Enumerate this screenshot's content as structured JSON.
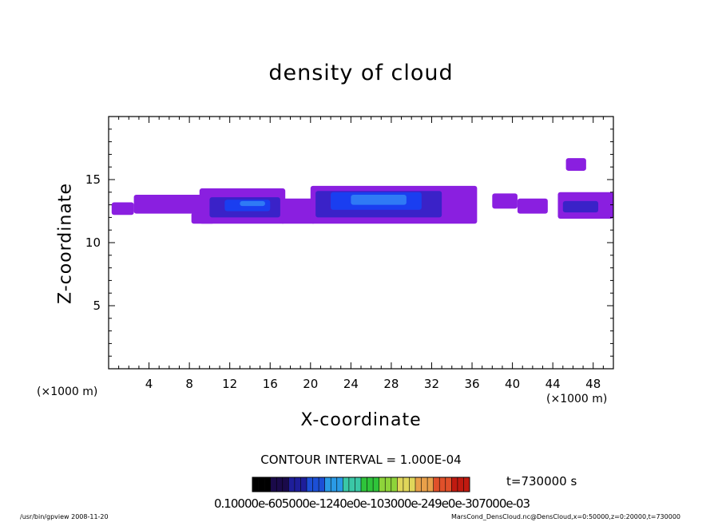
{
  "chart_data": {
    "type": "heatmap",
    "title": "density of cloud",
    "xlabel": "X-coordinate",
    "ylabel": "Z-coordinate",
    "x_unit_left": "(×1000 m)",
    "x_unit_right": "(×1000 m)",
    "xlim": [
      0,
      50
    ],
    "ylim": [
      0,
      20
    ],
    "xticks": [
      4,
      8,
      12,
      16,
      20,
      24,
      28,
      32,
      36,
      40,
      44,
      48
    ],
    "yticks": [
      5,
      10,
      15
    ],
    "contour_interval": "CONTOUR INTERVAL = 1.000E-04",
    "time_label": "t=730000 s",
    "colorbar_text": "0.10000e-605000e-1240e0e-103000e-249e0e-307000e-03",
    "footer_left": "/usr/bin/gpview 2008-11-20",
    "footer_right": "MarsCond_DensCloud.nc@DensCloud,x=0:50000,z=0:20000,t=730000",
    "regions": [
      {
        "x0": 0.3,
        "x1": 2.5,
        "z0": 12.2,
        "z1": 13.2,
        "level": 0
      },
      {
        "x0": 2.5,
        "x1": 9.5,
        "z0": 12.3,
        "z1": 13.8,
        "level": 0
      },
      {
        "x0": 8.2,
        "x1": 10.5,
        "z0": 11.5,
        "z1": 12.4,
        "level": 0
      },
      {
        "x0": 9.0,
        "x1": 17.5,
        "z0": 11.5,
        "z1": 14.3,
        "level": 0
      },
      {
        "x0": 17.0,
        "x1": 20.5,
        "z0": 11.5,
        "z1": 13.5,
        "level": 0
      },
      {
        "x0": 20.0,
        "x1": 36.5,
        "z0": 11.5,
        "z1": 14.5,
        "level": 0
      },
      {
        "x0": 38.0,
        "x1": 40.5,
        "z0": 12.7,
        "z1": 13.9,
        "level": 0
      },
      {
        "x0": 40.5,
        "x1": 43.5,
        "z0": 12.3,
        "z1": 13.5,
        "level": 0
      },
      {
        "x0": 44.5,
        "x1": 50.0,
        "z0": 11.9,
        "z1": 14.0,
        "level": 0
      },
      {
        "x0": 45.3,
        "x1": 47.3,
        "z0": 15.7,
        "z1": 16.7,
        "level": 0
      },
      {
        "x0": 10.0,
        "x1": 17.0,
        "z0": 12.0,
        "z1": 13.6,
        "level": 1
      },
      {
        "x0": 20.5,
        "x1": 33.0,
        "z0": 12.0,
        "z1": 14.1,
        "level": 1
      },
      {
        "x0": 45.0,
        "x1": 48.5,
        "z0": 12.4,
        "z1": 13.3,
        "level": 1
      },
      {
        "x0": 11.5,
        "x1": 16.0,
        "z0": 12.5,
        "z1": 13.4,
        "level": 2
      },
      {
        "x0": 22.0,
        "x1": 31.0,
        "z0": 12.6,
        "z1": 14.0,
        "level": 2
      },
      {
        "x0": 13.0,
        "x1": 15.5,
        "z0": 12.9,
        "z1": 13.3,
        "level": 3
      },
      {
        "x0": 24.0,
        "x1": 29.5,
        "z0": 13.0,
        "z1": 13.8,
        "level": 3
      }
    ],
    "level_colors": [
      "#8a1fe0",
      "#3a22c8",
      "#1a3ef0",
      "#2f7af5"
    ],
    "colorbar_colors": [
      "#000000",
      "#1a0a4a",
      "#1e1e9a",
      "#1c4fd6",
      "#2a9ae6",
      "#3ac7a6",
      "#2fc43a",
      "#8ed43a",
      "#e0d65a",
      "#e8a04a",
      "#e0502a",
      "#c01a10"
    ]
  }
}
